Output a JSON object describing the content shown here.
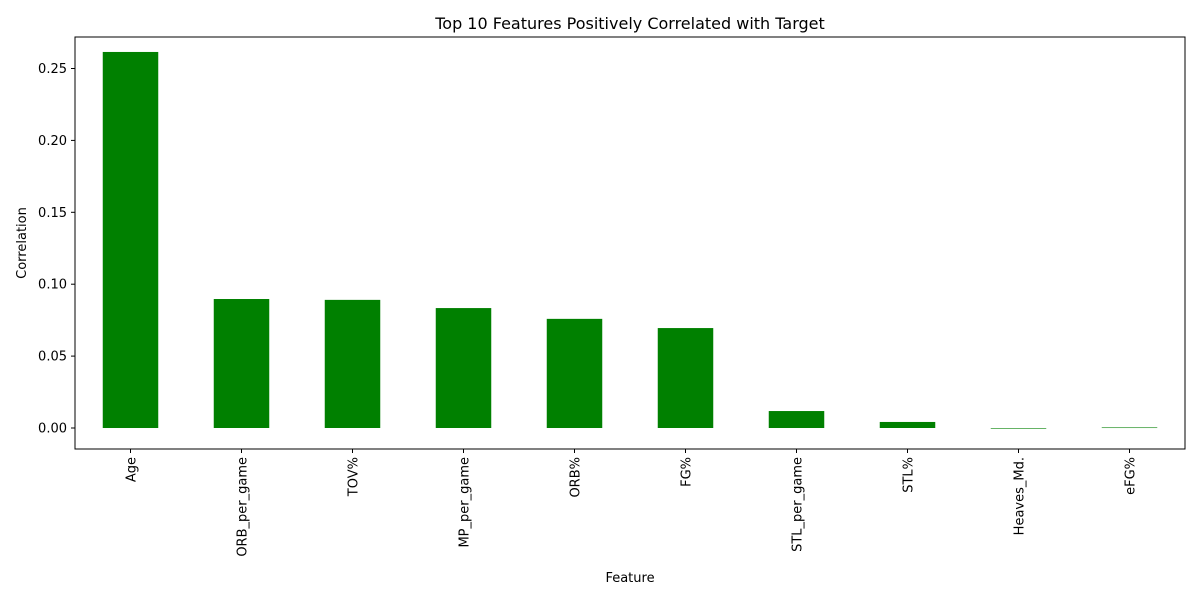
{
  "chart_data": {
    "type": "bar",
    "title": "Top 10 Features Positively Correlated with Target",
    "xlabel": "Feature",
    "ylabel": "Correlation",
    "categories": [
      "Age",
      "ORB_per_game",
      "TOV%",
      "MP_per_game",
      "ORB%",
      "FG%",
      "STL_per_game",
      "STL%",
      "Heaves_Md.",
      "eFG%"
    ],
    "values": [
      0.2615,
      0.0897,
      0.0891,
      0.0834,
      0.0759,
      0.0695,
      0.0118,
      0.0042,
      0.0,
      0.0004
    ],
    "ylim": [
      -0.0146,
      0.2719
    ],
    "yticks": [
      0.0,
      0.05,
      0.1,
      0.15,
      0.2,
      0.25
    ],
    "ytick_labels": [
      "0.00",
      "0.05",
      "0.10",
      "0.15",
      "0.20",
      "0.25"
    ],
    "grid": false,
    "legend": "none",
    "bar_color": "#008000"
  }
}
